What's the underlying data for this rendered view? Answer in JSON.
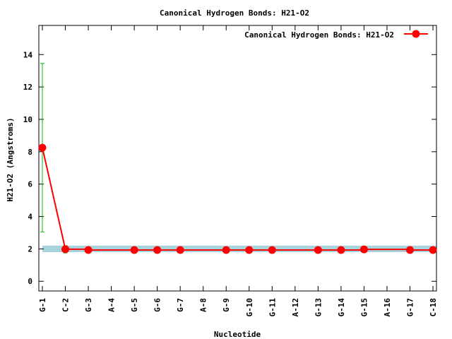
{
  "chart_data": {
    "type": "line",
    "title": "Canonical Hydrogen Bonds: H21-O2",
    "xlabel": "Nucleotide",
    "ylabel": "H21-O2 (Angstroms)",
    "ylim": [
      -0.6,
      15.8
    ],
    "yticks": [
      "0",
      "2",
      "4",
      "6",
      "8",
      "10",
      "12",
      "14"
    ],
    "categories": [
      "G-1",
      "C-2",
      "G-3",
      "A-4",
      "G-5",
      "G-6",
      "G-7",
      "A-8",
      "G-9",
      "G-10",
      "G-11",
      "A-12",
      "G-13",
      "G-14",
      "G-15",
      "A-16",
      "G-17",
      "C-18"
    ],
    "series": [
      {
        "name": "Canonical Hydrogen Bonds: H21-O2",
        "color": "#ff0000",
        "values": [
          8.25,
          1.98,
          1.93,
          null,
          1.93,
          1.93,
          1.93,
          null,
          1.93,
          1.93,
          1.93,
          null,
          1.93,
          1.93,
          1.97,
          null,
          1.93,
          1.93
        ],
        "error_low": [
          3.05,
          1.75,
          null,
          null,
          null,
          null,
          null,
          null,
          null,
          null,
          null,
          null,
          null,
          null,
          null,
          null,
          null,
          null
        ],
        "error_high": [
          13.45,
          2.2,
          null,
          null,
          null,
          null,
          null,
          null,
          null,
          null,
          null,
          null,
          null,
          null,
          null,
          null,
          null,
          null
        ]
      }
    ],
    "reference_band": {
      "low": 1.8,
      "high": 2.2,
      "color": "#a8d2dc"
    },
    "error_bar_color": "#00bb00",
    "grid": false,
    "legend_position": "top-right"
  }
}
